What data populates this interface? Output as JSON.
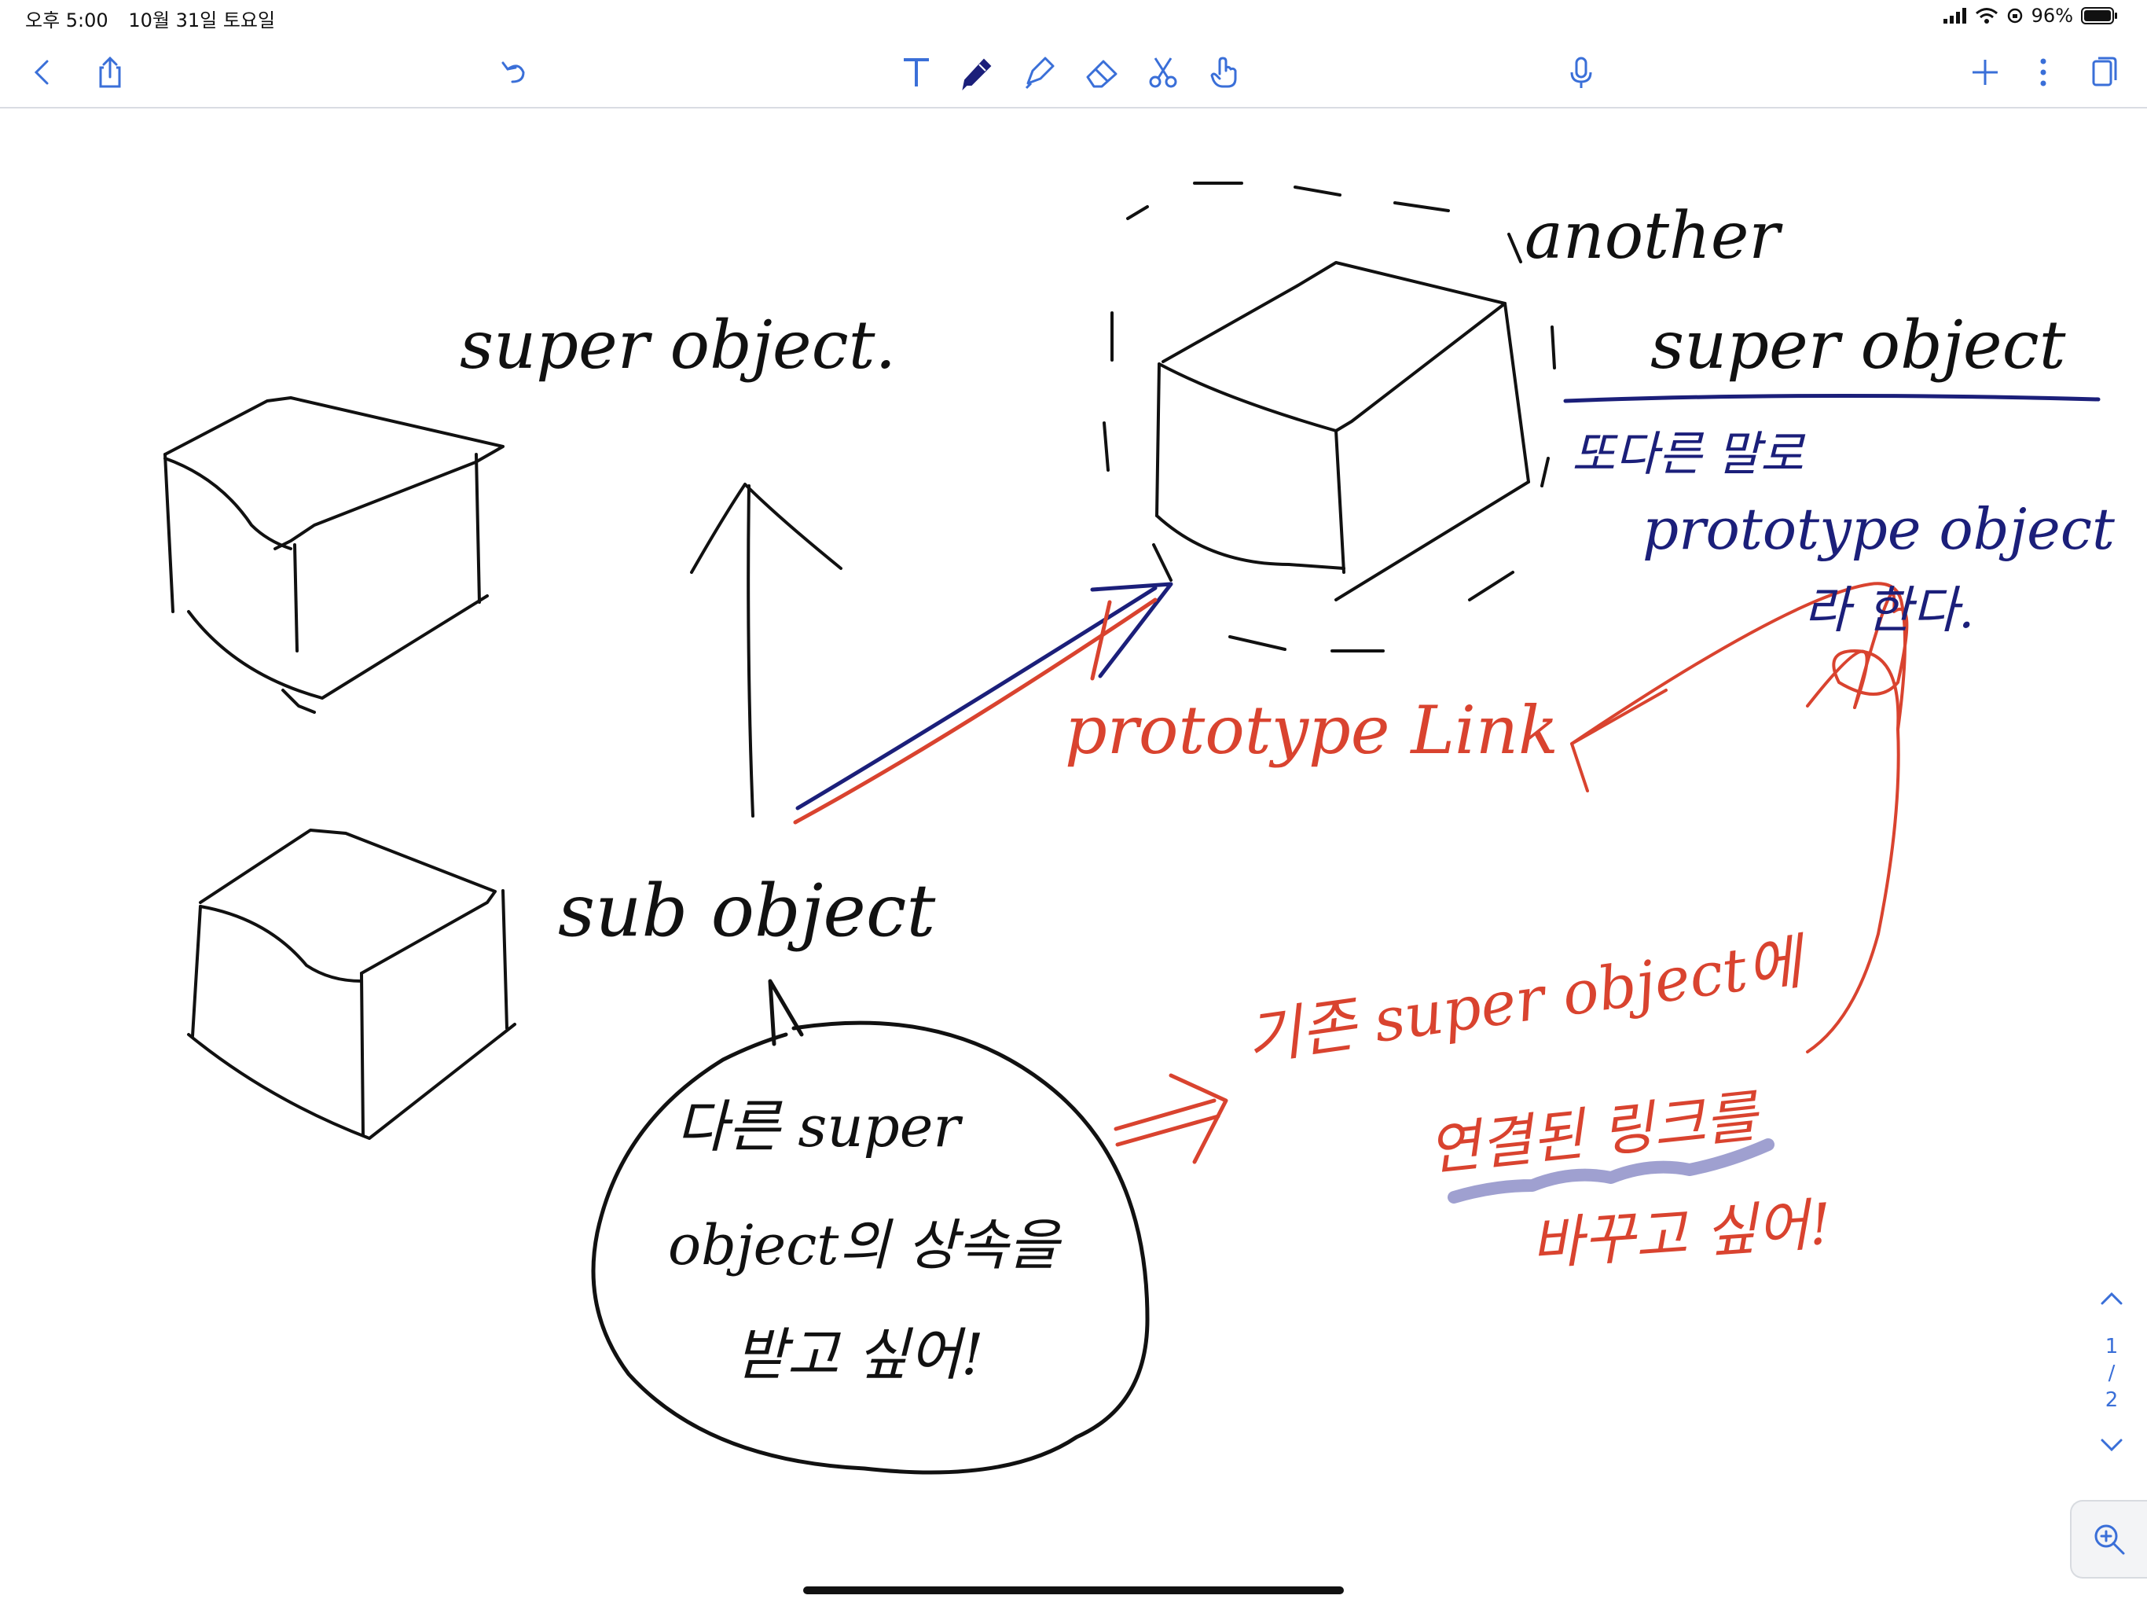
{
  "status": {
    "time": "오후 5:00",
    "date": "10월 31일 토요일",
    "battery": "96%"
  },
  "toolbar": {
    "left": [
      "chevron-left-icon",
      "share-icon",
      "undo-icon"
    ],
    "tools": [
      "text-tool-icon",
      "pen-tool-icon",
      "highlighter-tool-icon",
      "eraser-tool-icon",
      "lasso-scissors-icon",
      "hand-pointer-icon"
    ],
    "right": [
      "microphone-icon",
      "plus-icon",
      "more-icon",
      "pages-icon"
    ]
  },
  "notes": {
    "super_object": "super object.",
    "sub_object": "sub object",
    "another_super_object_line1": "another",
    "another_super_object_line2": "super object",
    "annotation_line1": "또다른 말로",
    "annotation_line2": "prototype object",
    "annotation_line3": "라 한다.",
    "prototype_link": "prototype Link",
    "bubble_line1": "다른 super",
    "bubble_line2": "object의 상속을",
    "bubble_line3": "받고 싶어!",
    "result_line1": "기존 super object에",
    "result_line2": "연결된 링크를",
    "result_line3": "바꾸고 싶어!"
  },
  "pager": {
    "current": "1",
    "separator": "/",
    "total": "2"
  },
  "colors": {
    "ink_black": "#111111",
    "ink_navy": "#1b1f7a",
    "ink_red": "#d9432f",
    "ink_lavender": "#8e8fc8",
    "accent_blue": "#3a6fd8"
  }
}
